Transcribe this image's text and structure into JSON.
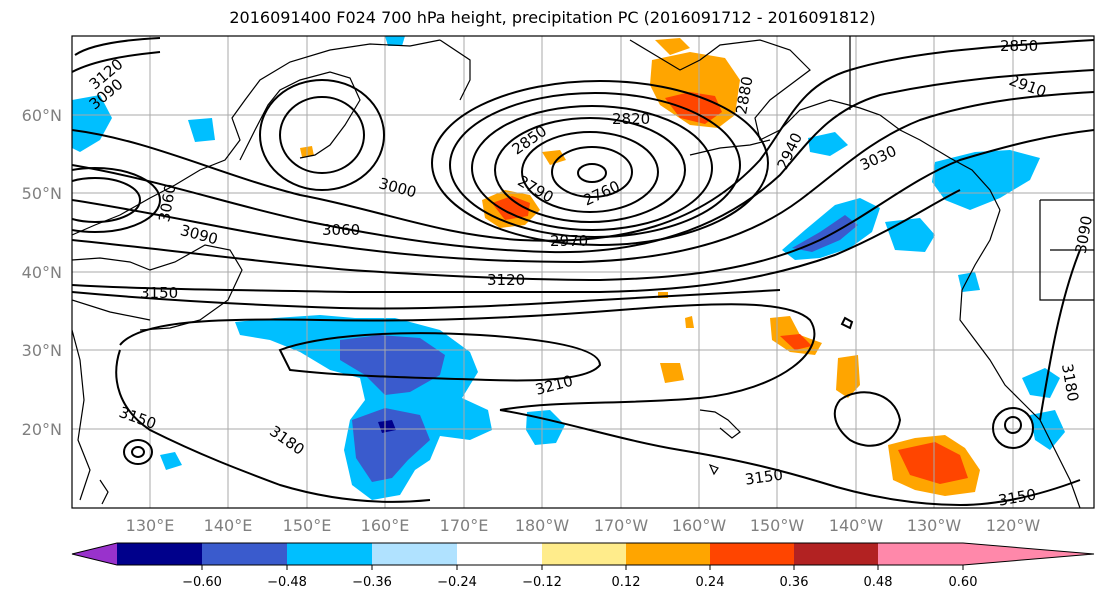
{
  "title": "2016091400 F024 700 hPa height, precipitation PC (2016091712 - 2016091812)",
  "map": {
    "lat_labels": [
      "60°N",
      "50°N",
      "40°N",
      "30°N",
      "20°N"
    ],
    "lon_labels": [
      "130°E",
      "140°E",
      "150°E",
      "160°E",
      "170°E",
      "180°W",
      "170°W",
      "160°W",
      "150°W",
      "140°W",
      "130°W",
      "120°W"
    ],
    "contour_labels": [
      "3120",
      "3090",
      "3060",
      "3090",
      "3150",
      "3000",
      "3060",
      "2850",
      "2790",
      "2820",
      "2760",
      "2970",
      "2880",
      "2940",
      "2910",
      "2850",
      "3030",
      "3120",
      "3210",
      "3150",
      "3180",
      "3150",
      "3150",
      "3090",
      "3180"
    ]
  },
  "colorbar": {
    "ticks": [
      "−0.60",
      "−0.48",
      "−0.36",
      "−0.24",
      "−0.12",
      "0.12",
      "0.24",
      "0.36",
      "0.48",
      "0.60"
    ],
    "colors": [
      "#9932CC",
      "#00008B",
      "#3A5BCD",
      "#00BFFF",
      "#B0E2FF",
      "#FFFFFF",
      "#FFEC8B",
      "#FFA500",
      "#FF4500",
      "#B22222",
      "#FF88AA"
    ]
  }
}
